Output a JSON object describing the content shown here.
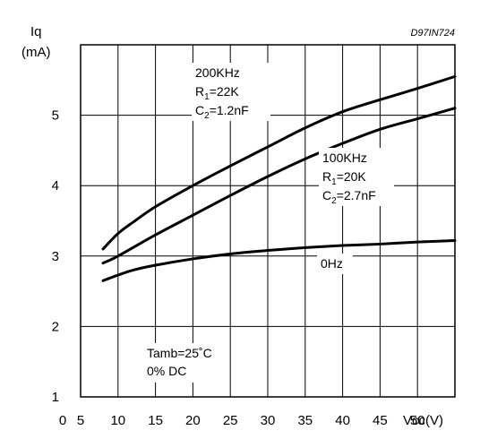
{
  "chart_data": {
    "type": "line",
    "title": "",
    "reference": "D97IN724",
    "ylabel": [
      "Iq",
      "(mA)"
    ],
    "xlabel": "Vcc(V)",
    "xlim": [
      0,
      55
    ],
    "ylim": [
      1,
      6
    ],
    "xticks": [
      0,
      5,
      10,
      15,
      20,
      25,
      30,
      35,
      40,
      45,
      50
    ],
    "yticks": [
      1,
      2,
      3,
      4,
      5
    ],
    "grid": true,
    "series": [
      {
        "name": "200KHz",
        "labels": [
          {
            "base": "200KHz",
            "sub": "",
            "rest": ""
          },
          {
            "base": "R",
            "sub": "1",
            "rest": "=22K"
          },
          {
            "base": "C",
            "sub": "2",
            "rest": "=1.2nF"
          }
        ],
        "x": [
          8,
          10,
          12,
          15,
          20,
          25,
          30,
          35,
          40,
          45,
          50,
          55
        ],
        "y": [
          3.1,
          3.32,
          3.48,
          3.7,
          4.0,
          4.28,
          4.55,
          4.82,
          5.05,
          5.22,
          5.38,
          5.55
        ]
      },
      {
        "name": "100KHz",
        "labels": [
          {
            "base": "100KHz",
            "sub": "",
            "rest": ""
          },
          {
            "base": "R",
            "sub": "1",
            "rest": "=20K"
          },
          {
            "base": "C",
            "sub": "2",
            "rest": "=2.7nF"
          }
        ],
        "x": [
          8,
          10,
          15,
          20,
          25,
          30,
          35,
          40,
          45,
          50,
          55
        ],
        "y": [
          2.9,
          3.0,
          3.3,
          3.58,
          3.86,
          4.13,
          4.38,
          4.6,
          4.8,
          4.95,
          5.1
        ]
      },
      {
        "name": "0Hz",
        "labels": [
          {
            "base": "0Hz",
            "sub": "",
            "rest": ""
          }
        ],
        "x": [
          8,
          10,
          12,
          15,
          20,
          25,
          30,
          35,
          40,
          45,
          50,
          55
        ],
        "y": [
          2.65,
          2.73,
          2.8,
          2.87,
          2.96,
          3.03,
          3.08,
          3.12,
          3.15,
          3.17,
          3.2,
          3.22
        ]
      }
    ],
    "annotations": [
      "Tamb=25˚C",
      "0% DC"
    ]
  }
}
